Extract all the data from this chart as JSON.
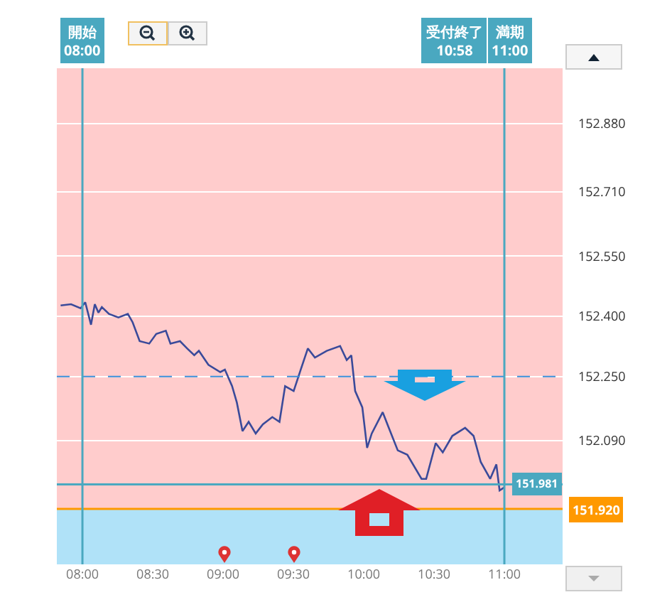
{
  "chart_data": {
    "type": "line",
    "x": [
      7.845,
      7.919,
      7.987,
      8.02,
      8.061,
      8.088,
      8.114,
      8.138,
      8.189,
      8.256,
      8.323,
      8.357,
      8.407,
      8.475,
      8.525,
      8.593,
      8.626,
      8.694,
      8.744,
      8.795,
      8.828,
      8.896,
      8.98,
      9.013,
      9.064,
      9.098,
      9.138,
      9.182,
      9.232,
      9.283,
      9.35,
      9.401,
      9.441,
      9.502,
      9.552,
      9.603,
      9.653,
      9.737,
      9.832,
      9.879,
      9.912,
      9.939,
      9.99,
      10.024,
      10.057,
      10.135,
      10.175,
      10.242,
      10.31,
      10.411,
      10.444,
      10.512,
      10.562,
      10.63,
      10.721,
      10.781,
      10.832,
      10.899,
      10.943,
      10.966,
      11.0
    ],
    "series": [
      {
        "color": "#3a4a9a",
        "values": [
          152.427,
          152.43,
          152.42,
          152.435,
          152.379,
          152.43,
          152.409,
          152.423,
          152.406,
          152.397,
          152.406,
          152.385,
          152.338,
          152.332,
          152.356,
          152.364,
          152.332,
          152.338,
          152.32,
          152.303,
          152.314,
          152.279,
          152.261,
          152.267,
          152.226,
          152.185,
          152.114,
          152.137,
          152.108,
          152.131,
          152.149,
          152.137,
          152.226,
          152.214,
          152.267,
          152.32,
          152.297,
          152.314,
          152.326,
          152.291,
          152.303,
          152.214,
          152.173,
          152.072,
          152.108,
          152.161,
          152.125,
          152.066,
          152.055,
          151.995,
          151.995,
          152.084,
          152.061,
          152.102,
          152.122,
          152.102,
          152.037,
          151.995,
          152.031,
          151.966,
          151.974
        ]
      }
    ],
    "xlim": [
      7.818,
      11.414
    ],
    "xticks": [
      {
        "value": 8,
        "label": "08:00"
      },
      {
        "value": 8.5,
        "label": "08:30"
      },
      {
        "value": 9,
        "label": "09:00"
      },
      {
        "value": 9.5,
        "label": "09:30"
      },
      {
        "value": 10,
        "label": "10:00"
      },
      {
        "value": 10.5,
        "label": "10:30"
      },
      {
        "value": 11,
        "label": "11:00"
      }
    ],
    "ylim": [
      151.782,
      153.018
    ],
    "yticks": [
      {
        "value": 152.09,
        "label": "152.090"
      },
      {
        "value": 152.25,
        "label": "152.250"
      },
      {
        "value": 152.4,
        "label": "152.400"
      },
      {
        "value": 152.55,
        "label": "152.550"
      },
      {
        "value": 152.71,
        "label": "152.710"
      },
      {
        "value": 152.88,
        "label": "152.880"
      }
    ],
    "grid": "y",
    "bands": [
      {
        "axis": "y",
        "from": 151.92,
        "to": 153.018,
        "color": "#ffcccc"
      },
      {
        "axis": "y",
        "from": 151.782,
        "to": 151.92,
        "color": "#b0e2f8"
      }
    ],
    "ref_lines": [
      {
        "axis": "y",
        "value": 152.25,
        "color": "#3b8fd9",
        "line_style": "dashed"
      },
      {
        "axis": "y",
        "value": 151.981,
        "label": "151.981",
        "color": "#4aa8c0",
        "line_style": "solid"
      },
      {
        "axis": "y",
        "value": 151.92,
        "label": "151.920",
        "color": "#ff9900",
        "line_style": "solid"
      },
      {
        "axis": "x",
        "value": 8,
        "label": "開始\n08:00",
        "color": "#4aa8c0",
        "line_style": "solid"
      },
      {
        "axis": "x",
        "value": 11,
        "label": "満期\n11:00",
        "color": "#4aa8c0",
        "line_style": "solid"
      }
    ],
    "annotations": [
      "受付終了\n10:58"
    ]
  }
}
